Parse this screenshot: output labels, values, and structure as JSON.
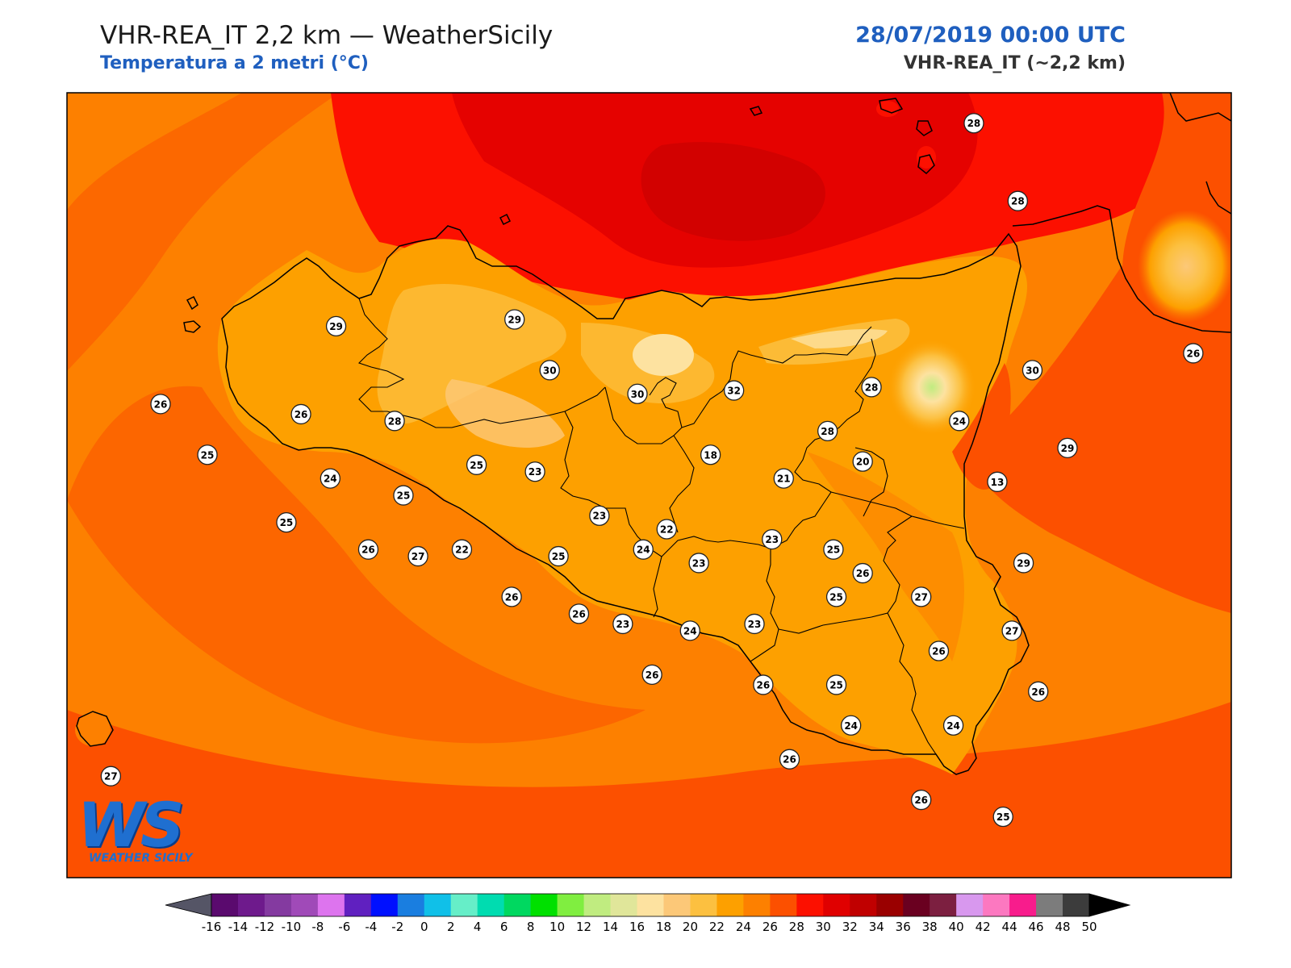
{
  "header": {
    "title": "VHR-REA_IT 2,2 km — WeatherSicily",
    "subtitle": "Temperatura a 2 metri (°C)",
    "datetime": "28/07/2019 00:00 UTC",
    "model": "VHR-REA_IT (~2,2 km)"
  },
  "logo": {
    "letters": "WS",
    "text": "WEATHER SICILY"
  },
  "map": {
    "variable": "2m temperature",
    "unit": "°C",
    "stations": [
      {
        "label": "28",
        "lon": 14.9,
        "lat": 38.78
      },
      {
        "label": "28",
        "lon": 15.05,
        "lat": 38.55
      },
      {
        "label": "29",
        "lon": 12.72,
        "lat": 38.18
      },
      {
        "label": "29",
        "lon": 13.33,
        "lat": 38.2
      },
      {
        "label": "30",
        "lon": 13.45,
        "lat": 38.05
      },
      {
        "label": "30",
        "lon": 13.75,
        "lat": 37.98
      },
      {
        "label": "30",
        "lon": 15.1,
        "lat": 38.05
      },
      {
        "label": "26",
        "lon": 15.65,
        "lat": 38.1
      },
      {
        "label": "28",
        "lon": 14.55,
        "lat": 38.0
      },
      {
        "label": "32",
        "lon": 14.08,
        "lat": 37.99
      },
      {
        "label": "26",
        "lon": 12.12,
        "lat": 37.95
      },
      {
        "label": "26",
        "lon": 12.6,
        "lat": 37.92
      },
      {
        "label": "28",
        "lon": 12.92,
        "lat": 37.9
      },
      {
        "label": "25",
        "lon": 12.28,
        "lat": 37.8
      },
      {
        "label": "25",
        "lon": 13.2,
        "lat": 37.77
      },
      {
        "label": "23",
        "lon": 13.4,
        "lat": 37.75
      },
      {
        "label": "28",
        "lon": 14.4,
        "lat": 37.87
      },
      {
        "label": "18",
        "lon": 14.0,
        "lat": 37.8
      },
      {
        "label": "21",
        "lon": 14.25,
        "lat": 37.73
      },
      {
        "label": "20",
        "lon": 14.52,
        "lat": 37.78
      },
      {
        "label": "24",
        "lon": 14.85,
        "lat": 37.9
      },
      {
        "label": "29",
        "lon": 15.22,
        "lat": 37.82
      },
      {
        "label": "24",
        "lon": 12.7,
        "lat": 37.73
      },
      {
        "label": "25",
        "lon": 12.95,
        "lat": 37.68
      },
      {
        "label": "13",
        "lon": 14.98,
        "lat": 37.72
      },
      {
        "label": "23",
        "lon": 13.62,
        "lat": 37.62
      },
      {
        "label": "22",
        "lon": 13.85,
        "lat": 37.58
      },
      {
        "label": "25",
        "lon": 12.55,
        "lat": 37.6
      },
      {
        "label": "22",
        "lon": 13.15,
        "lat": 37.52
      },
      {
        "label": "26",
        "lon": 14.52,
        "lat": 37.45
      },
      {
        "label": "26",
        "lon": 12.83,
        "lat": 37.52
      },
      {
        "label": "27",
        "lon": 13.0,
        "lat": 37.5
      },
      {
        "label": "25",
        "lon": 13.48,
        "lat": 37.5
      },
      {
        "label": "24",
        "lon": 13.77,
        "lat": 37.52
      },
      {
        "label": "23",
        "lon": 13.96,
        "lat": 37.48
      },
      {
        "label": "23",
        "lon": 14.21,
        "lat": 37.55
      },
      {
        "label": "25",
        "lon": 14.42,
        "lat": 37.52
      },
      {
        "label": "29",
        "lon": 15.07,
        "lat": 37.48
      },
      {
        "label": "27",
        "lon": 14.72,
        "lat": 37.38
      },
      {
        "label": "26",
        "lon": 13.32,
        "lat": 37.38
      },
      {
        "label": "26",
        "lon": 13.55,
        "lat": 37.33
      },
      {
        "label": "25",
        "lon": 14.43,
        "lat": 37.38
      },
      {
        "label": "23",
        "lon": 13.7,
        "lat": 37.3
      },
      {
        "label": "24",
        "lon": 13.93,
        "lat": 37.28
      },
      {
        "label": "23",
        "lon": 14.15,
        "lat": 37.3
      },
      {
        "label": "27",
        "lon": 15.03,
        "lat": 37.28
      },
      {
        "label": "26",
        "lon": 14.78,
        "lat": 37.22
      },
      {
        "label": "26",
        "lon": 13.8,
        "lat": 37.15
      },
      {
        "label": "26",
        "lon": 14.18,
        "lat": 37.12
      },
      {
        "label": "25",
        "lon": 14.43,
        "lat": 37.12
      },
      {
        "label": "26",
        "lon": 15.12,
        "lat": 37.1
      },
      {
        "label": "24",
        "lon": 14.48,
        "lat": 37.0
      },
      {
        "label": "24",
        "lon": 14.83,
        "lat": 37.0
      },
      {
        "label": "26",
        "lon": 14.27,
        "lat": 36.9
      },
      {
        "label": "27",
        "lon": 11.95,
        "lat": 36.85
      },
      {
        "label": "26",
        "lon": 14.72,
        "lat": 36.78
      },
      {
        "label": "25",
        "lon": 15.0,
        "lat": 36.73
      }
    ]
  },
  "colorbar": {
    "ticks": [
      "-16",
      "-14",
      "-12",
      "-10",
      "-8",
      "-6",
      "-4",
      "-2",
      "0",
      "2",
      "4",
      "6",
      "8",
      "10",
      "12",
      "14",
      "16",
      "18",
      "20",
      "22",
      "24",
      "26",
      "28",
      "30",
      "32",
      "34",
      "36",
      "38",
      "40",
      "42",
      "44",
      "46",
      "48",
      "50"
    ],
    "colors": [
      "#3d0047",
      "#5a0a6e",
      "#6e1a8c",
      "#843aa0",
      "#a04ab8",
      "#dd74ee",
      "#6020c0",
      "#0010ff",
      "#1a7ee0",
      "#10c0e8",
      "#66eec8",
      "#00dcb0",
      "#00d860",
      "#00e000",
      "#80ee40",
      "#c0ec80",
      "#e0e69a",
      "#fde2a0",
      "#fcc878",
      "#fcc040",
      "#fda000",
      "#fd8000",
      "#fc5000",
      "#fc1000",
      "#e00000",
      "#c00000",
      "#9a0000",
      "#6a0020",
      "#7c1f40",
      "#d898ee",
      "#fc78c0",
      "#f81c8c",
      "#7c7c7c",
      "#3c3c3c"
    ],
    "underflow_color": "#555566",
    "overflow_color": "#000000"
  }
}
